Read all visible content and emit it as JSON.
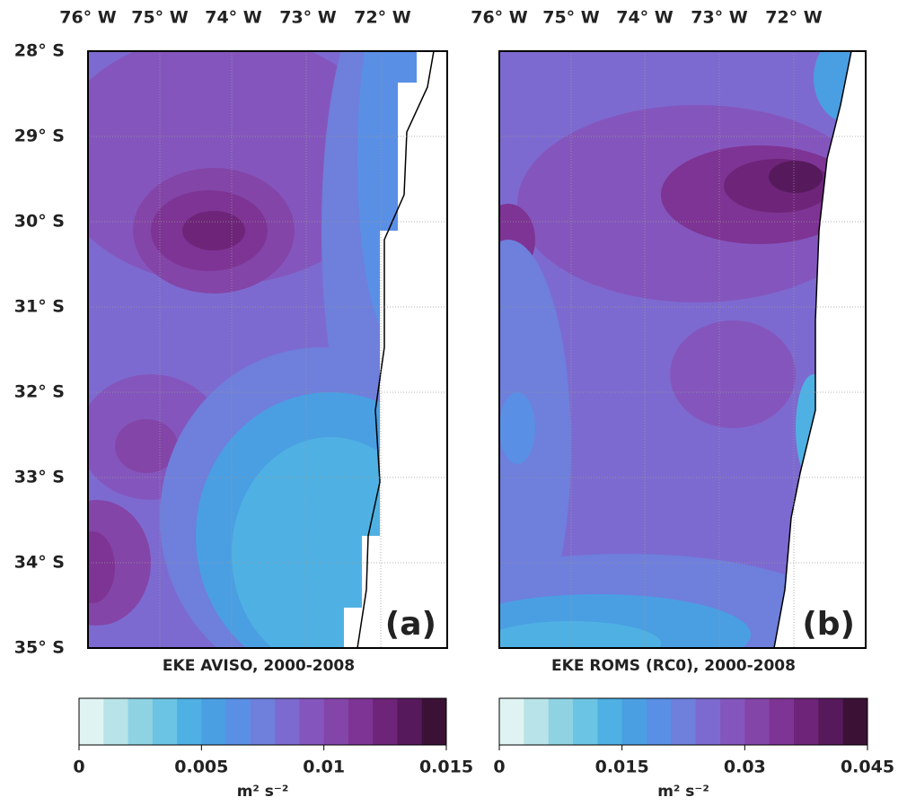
{
  "lat_ticks": [
    "28° S",
    "29° S",
    "30° S",
    "31° S",
    "32° S",
    "33° S",
    "34° S",
    "35° S"
  ],
  "panels": [
    {
      "lon_ticks": [
        "76° W",
        "75° W",
        "74° W",
        "73° W",
        "72° W"
      ],
      "caption": "EKE AVISO, 2000-2008",
      "label": "(a)",
      "colorbar": {
        "colors": [
          "#e0f3f3",
          "#b8e3e8",
          "#8fd3e3",
          "#6cc4e4",
          "#4fb1e3",
          "#4a9fe3",
          "#5a8fe6",
          "#6e7fdc",
          "#7d6ad0",
          "#8456bd",
          "#8445a8",
          "#7e3494",
          "#6e2479",
          "#561a5c",
          "#3b1236"
        ],
        "lim": [
          0,
          0.015
        ],
        "ticks": [
          0,
          0.005,
          0.01,
          0.015
        ],
        "unit_label": "m² s⁻²"
      }
    },
    {
      "lon_ticks": [
        "76° W",
        "75° W",
        "74° W",
        "73° W",
        "72° W"
      ],
      "caption": "EKE ROMS (RC0), 2000-2008",
      "label": "(b)",
      "colorbar": {
        "colors": [
          "#e0f3f3",
          "#b8e3e8",
          "#8fd3e3",
          "#6cc4e4",
          "#4fb1e3",
          "#4a9fe3",
          "#5a8fe6",
          "#6e7fdc",
          "#7d6ad0",
          "#8456bd",
          "#8445a8",
          "#7e3494",
          "#6e2479",
          "#561a5c",
          "#3b1236"
        ],
        "lim": [
          0,
          0.045
        ],
        "ticks": [
          0,
          0.015,
          0.03,
          0.045
        ],
        "unit_label": "m² s⁻²"
      }
    }
  ]
}
